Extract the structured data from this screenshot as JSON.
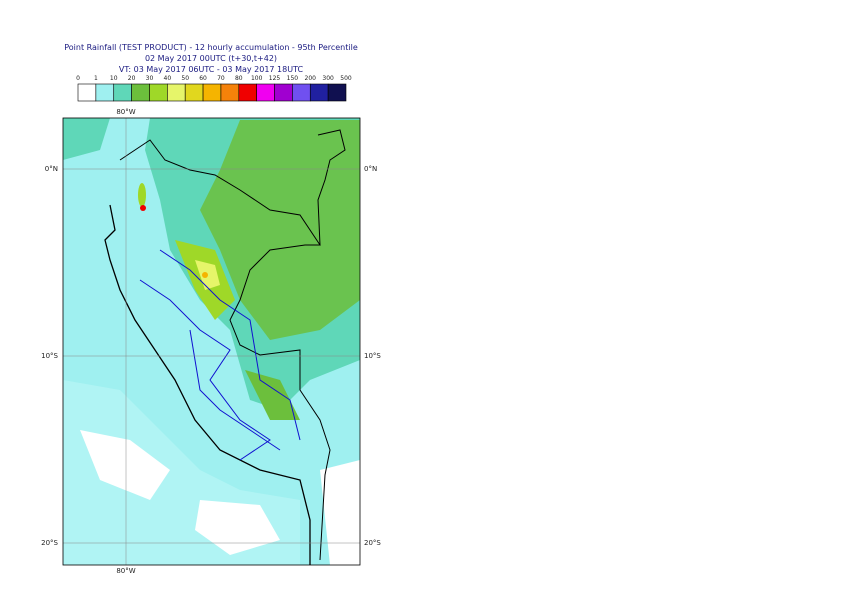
{
  "header": {
    "title": [
      "Point Rainfall (TEST PRODUCT) - 12 hourly accumulation - 95th Percentile",
      "02 May 2017 00UTC (t+30,t+42)",
      "VT: 03 May 2017 06UTC - 03 May 2017 18UTC"
    ]
  },
  "legend": {
    "labels": [
      0,
      1,
      10,
      20,
      30,
      40,
      50,
      60,
      70,
      80,
      100,
      125,
      150,
      200,
      300,
      500
    ],
    "colors": [
      "#ffffff",
      "#9ff0f0",
      "#5fd7b8",
      "#6cbf3c",
      "#9fd828",
      "#e6f56a",
      "#e1d71e",
      "#f5b400",
      "#f5820a",
      "#f00000",
      "#f000f0",
      "#a000d0",
      "#7050f0",
      "#2020a0",
      "#101050"
    ]
  },
  "map": {
    "lon_label": "80°W",
    "lat_labels": [
      "0°N",
      "10°S",
      "20°S"
    ]
  }
}
